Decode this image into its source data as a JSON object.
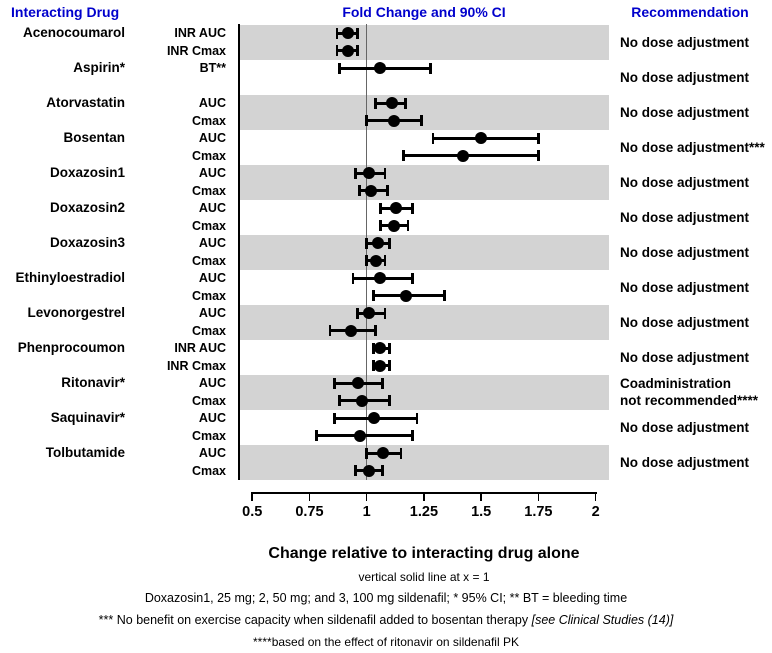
{
  "header": {
    "col_drug": "Interacting Drug",
    "col_plot": "Fold Change and 90% CI",
    "col_rec": "Recommendation"
  },
  "colors": {
    "header_blue": "#0000CC",
    "band_gray": "#D3D3D3",
    "marker_black": "#000000",
    "refline_gray": "#666666"
  },
  "chart_data": {
    "type": "forest",
    "title": "Fold Change and 90% CI",
    "xlabel": "Change relative to interacting drug alone",
    "xlim": [
      0.5,
      2
    ],
    "x_ticks": [
      0.5,
      0.75,
      1,
      1.25,
      1.5,
      1.75,
      2
    ],
    "x_tick_labels": [
      "0.5",
      "0.75",
      "1",
      "1.25",
      "1.5",
      "1.75",
      "2"
    ],
    "reference_line_x": 1,
    "ci_level_note": "90% CI (95% CI where *)",
    "groups": [
      {
        "drug": "Acenocoumarol",
        "shaded": true,
        "recommendation": [
          "No dose adjustment"
        ],
        "rows": [
          {
            "metric": "INR AUC",
            "value": 0.92,
            "ci_low": 0.87,
            "ci_high": 0.96
          },
          {
            "metric": "INR Cmax",
            "value": 0.92,
            "ci_low": 0.87,
            "ci_high": 0.96
          }
        ]
      },
      {
        "drug": "Aspirin*",
        "shaded": false,
        "recommendation": [
          "No dose adjustment"
        ],
        "rows": [
          {
            "metric": "BT**",
            "value": 1.06,
            "ci_low": 0.88,
            "ci_high": 1.28
          }
        ]
      },
      {
        "drug": "Atorvastatin",
        "shaded": true,
        "recommendation": [
          "No dose adjustment"
        ],
        "rows": [
          {
            "metric": "AUC",
            "value": 1.11,
            "ci_low": 1.04,
            "ci_high": 1.17
          },
          {
            "metric": "Cmax",
            "value": 1.12,
            "ci_low": 1.0,
            "ci_high": 1.24
          }
        ]
      },
      {
        "drug": "Bosentan",
        "shaded": false,
        "recommendation": [
          "No dose adjustment***"
        ],
        "rows": [
          {
            "metric": "AUC",
            "value": 1.5,
            "ci_low": 1.29,
            "ci_high": 1.75
          },
          {
            "metric": "Cmax",
            "value": 1.42,
            "ci_low": 1.16,
            "ci_high": 1.75
          }
        ]
      },
      {
        "drug": "Doxazosin1",
        "shaded": true,
        "recommendation": [
          "No dose adjustment"
        ],
        "rows": [
          {
            "metric": "AUC",
            "value": 1.01,
            "ci_low": 0.95,
            "ci_high": 1.08
          },
          {
            "metric": "Cmax",
            "value": 1.02,
            "ci_low": 0.97,
            "ci_high": 1.09
          }
        ]
      },
      {
        "drug": "Doxazosin2",
        "shaded": false,
        "recommendation": [
          "No dose adjustment"
        ],
        "rows": [
          {
            "metric": "AUC",
            "value": 1.13,
            "ci_low": 1.06,
            "ci_high": 1.2
          },
          {
            "metric": "Cmax",
            "value": 1.12,
            "ci_low": 1.06,
            "ci_high": 1.18
          }
        ]
      },
      {
        "drug": "Doxazosin3",
        "shaded": true,
        "recommendation": [
          "No dose adjustment"
        ],
        "rows": [
          {
            "metric": "AUC",
            "value": 1.05,
            "ci_low": 1.0,
            "ci_high": 1.1
          },
          {
            "metric": "Cmax",
            "value": 1.04,
            "ci_low": 1.0,
            "ci_high": 1.08
          }
        ]
      },
      {
        "drug": "Ethinyloestradiol",
        "shaded": false,
        "recommendation": [
          "No dose adjustment"
        ],
        "rows": [
          {
            "metric": "AUC",
            "value": 1.06,
            "ci_low": 0.94,
            "ci_high": 1.2
          },
          {
            "metric": "Cmax",
            "value": 1.17,
            "ci_low": 1.03,
            "ci_high": 1.34
          }
        ]
      },
      {
        "drug": "Levonorgestrel",
        "shaded": true,
        "recommendation": [
          "No dose adjustment"
        ],
        "rows": [
          {
            "metric": "AUC",
            "value": 1.01,
            "ci_low": 0.96,
            "ci_high": 1.08
          },
          {
            "metric": "Cmax",
            "value": 0.93,
            "ci_low": 0.84,
            "ci_high": 1.04
          }
        ]
      },
      {
        "drug": "Phenprocoumon",
        "shaded": false,
        "recommendation": [
          "No dose adjustment"
        ],
        "rows": [
          {
            "metric": "INR AUC",
            "value": 1.06,
            "ci_low": 1.03,
            "ci_high": 1.1
          },
          {
            "metric": "INR Cmax",
            "value": 1.06,
            "ci_low": 1.03,
            "ci_high": 1.1
          }
        ]
      },
      {
        "drug": "Ritonavir*",
        "shaded": true,
        "recommendation": [
          "Coadministration",
          "not recommended****"
        ],
        "rows": [
          {
            "metric": "AUC",
            "value": 0.96,
            "ci_low": 0.86,
            "ci_high": 1.07
          },
          {
            "metric": "Cmax",
            "value": 0.98,
            "ci_low": 0.88,
            "ci_high": 1.1
          }
        ]
      },
      {
        "drug": "Saquinavir*",
        "shaded": false,
        "recommendation": [
          "No dose adjustment"
        ],
        "rows": [
          {
            "metric": "AUC",
            "value": 1.03,
            "ci_low": 0.86,
            "ci_high": 1.22
          },
          {
            "metric": "Cmax",
            "value": 0.97,
            "ci_low": 0.78,
            "ci_high": 1.2
          }
        ]
      },
      {
        "drug": "Tolbutamide",
        "shaded": true,
        "recommendation": [
          "No dose adjustment"
        ],
        "rows": [
          {
            "metric": "AUC",
            "value": 1.07,
            "ci_low": 1.0,
            "ci_high": 1.15
          },
          {
            "metric": "Cmax",
            "value": 1.01,
            "ci_low": 0.95,
            "ci_high": 1.07
          }
        ]
      }
    ]
  },
  "axis": {
    "title": "Change relative to interacting drug alone"
  },
  "footnotes": {
    "line1": "vertical solid line at x = 1",
    "line2": "Doxazosin1, 25 mg; 2, 50 mg; and 3, 100 mg sildenafil; * 95% CI; ** BT = bleeding time",
    "line3_normal": "*** No benefit on exercise capacity when sildenafil added to bosentan therapy ",
    "line3_italic": " [see Clinical Studies (14)]",
    "line4": "****based on the effect of ritonavir on sildenafil PK"
  }
}
